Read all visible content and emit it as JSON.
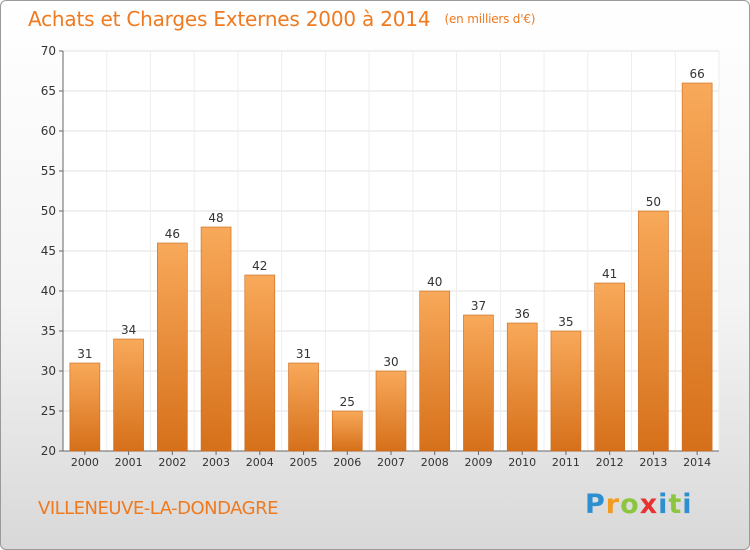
{
  "chart_data": {
    "type": "bar",
    "title": "Achats et Charges Externes 2000 à 2014",
    "subtitle": "(en milliers d'€)",
    "categories": [
      "2000",
      "2001",
      "2002",
      "2003",
      "2004",
      "2005",
      "2006",
      "2007",
      "2008",
      "2009",
      "2010",
      "2011",
      "2012",
      "2013",
      "2014"
    ],
    "values": [
      31,
      34,
      46,
      48,
      42,
      31,
      25,
      30,
      40,
      37,
      36,
      35,
      41,
      50,
      66
    ],
    "ylim": [
      20,
      70
    ],
    "yticks": [
      20,
      25,
      30,
      35,
      40,
      45,
      50,
      55,
      60,
      65,
      70
    ],
    "grid": true,
    "xlabel": "",
    "ylabel": ""
  },
  "footer": {
    "commune": "VILLENEUVE-LA-DONDAGRE",
    "logo_text": "Proxiti"
  },
  "colors": {
    "accent": "#ef7a1f",
    "bar_light": "#f7a650",
    "bar_dark": "#d86f14"
  }
}
